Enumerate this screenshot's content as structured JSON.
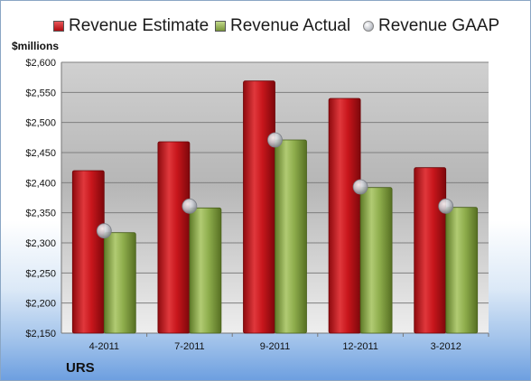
{
  "chart_data": {
    "type": "bar",
    "unit_label": "$millions",
    "footer_label": "URS",
    "categories": [
      "4-2011",
      "7-2011",
      "9-2011",
      "12-2011",
      "3-2012"
    ],
    "series": [
      {
        "name": "Revenue Estimate",
        "type": "bar",
        "color": "#c8161c",
        "values": [
          2420,
          2468,
          2569,
          2540,
          2425
        ]
      },
      {
        "name": "Revenue Actual",
        "type": "bar",
        "color": "#8fae4d",
        "values": [
          2317,
          2358,
          2471,
          2392,
          2359
        ]
      },
      {
        "name": "Revenue GAAP",
        "type": "scatter",
        "color": "#b9bcc2",
        "values": [
          2320,
          2361,
          2471,
          2393,
          2361
        ]
      }
    ],
    "ylim": [
      2150,
      2600
    ],
    "yticks": [
      2150,
      2200,
      2250,
      2300,
      2350,
      2400,
      2450,
      2500,
      2550,
      2600
    ],
    "ytick_labels": [
      "$2,150",
      "$2,200",
      "$2,250",
      "$2,300",
      "$2,350",
      "$2,400",
      "$2,450",
      "$2,500",
      "$2,550",
      "$2,600"
    ],
    "grid": true,
    "legend_position": "top"
  }
}
